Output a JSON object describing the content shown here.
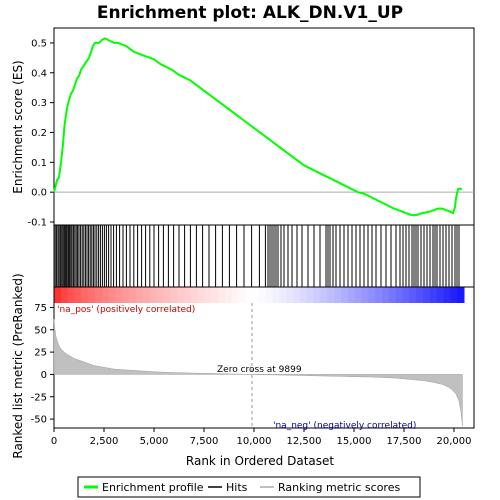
{
  "chart_data": {
    "type": "line",
    "title": "Enrichment plot: ALK_DN.V1_UP",
    "es_panel": {
      "ylabel": "Enrichment score (ES)",
      "ylim": [
        -0.11,
        0.55
      ],
      "yticks": [
        "0.5",
        "0.4",
        "0.3",
        "0.2",
        "0.1",
        "0.0",
        "-0.1"
      ],
      "ytick_values": [
        0.5,
        0.4,
        0.3,
        0.2,
        0.1,
        0.0,
        -0.1
      ],
      "series": {
        "name": "Enrichment profile",
        "color": "#00ff00",
        "x": [
          0,
          150,
          250,
          350,
          450,
          520,
          600,
          680,
          760,
          850,
          950,
          1050,
          1150,
          1250,
          1350,
          1450,
          1550,
          1650,
          1750,
          1850,
          1950,
          2050,
          2150,
          2250,
          2400,
          2550,
          2700,
          2850,
          3000,
          3200,
          3400,
          3600,
          3800,
          4000,
          4200,
          4400,
          4600,
          4800,
          5000,
          5300,
          5600,
          5900,
          6200,
          6500,
          6800,
          7100,
          7400,
          7700,
          8000,
          8300,
          8600,
          8900,
          9200,
          9500,
          9800,
          10100,
          10400,
          10700,
          11000,
          11300,
          11600,
          11900,
          12200,
          12500,
          12800,
          13100,
          13400,
          13700,
          14000,
          14300,
          14600,
          14900,
          15200,
          15500,
          15800,
          16100,
          16400,
          16700,
          17000,
          17200,
          17400,
          17600,
          17800,
          18000,
          18200,
          18400,
          18600,
          18800,
          19000,
          19200,
          19400,
          19600,
          19800,
          19950,
          20050,
          20100,
          20200,
          20300,
          20400
        ],
        "y": [
          0.0,
          0.04,
          0.05,
          0.1,
          0.16,
          0.22,
          0.26,
          0.29,
          0.31,
          0.33,
          0.34,
          0.36,
          0.38,
          0.39,
          0.41,
          0.42,
          0.43,
          0.44,
          0.45,
          0.47,
          0.49,
          0.5,
          0.5,
          0.5,
          0.51,
          0.515,
          0.51,
          0.505,
          0.5,
          0.5,
          0.495,
          0.49,
          0.48,
          0.47,
          0.465,
          0.46,
          0.455,
          0.45,
          0.445,
          0.43,
          0.42,
          0.41,
          0.395,
          0.385,
          0.375,
          0.36,
          0.345,
          0.33,
          0.315,
          0.3,
          0.285,
          0.27,
          0.255,
          0.24,
          0.225,
          0.21,
          0.195,
          0.18,
          0.165,
          0.15,
          0.135,
          0.12,
          0.105,
          0.09,
          0.08,
          0.07,
          0.06,
          0.05,
          0.04,
          0.03,
          0.02,
          0.01,
          0.0,
          -0.005,
          -0.015,
          -0.025,
          -0.035,
          -0.045,
          -0.055,
          -0.06,
          -0.065,
          -0.07,
          -0.075,
          -0.078,
          -0.075,
          -0.07,
          -0.068,
          -0.065,
          -0.06,
          -0.055,
          -0.055,
          -0.06,
          -0.065,
          -0.07,
          -0.05,
          -0.02,
          0.01,
          0.012,
          0.01
        ]
      }
    },
    "hits": {
      "name": "Hits",
      "positions": [
        60,
        130,
        200,
        260,
        330,
        390,
        450,
        510,
        560,
        610,
        660,
        720,
        780,
        840,
        900,
        970,
        1040,
        1110,
        1180,
        1250,
        1330,
        1410,
        1490,
        1570,
        1650,
        1730,
        1810,
        1890,
        1970,
        2050,
        2140,
        2230,
        2320,
        2420,
        2520,
        2620,
        2730,
        2850,
        2980,
        3120,
        3280,
        3450,
        3620,
        3800,
        3990,
        4180,
        4380,
        4580,
        4790,
        5000,
        5230,
        5470,
        5720,
        5980,
        6250,
        6530,
        6820,
        7120,
        7430,
        7750,
        8080,
        8420,
        8770,
        9130,
        9500,
        9880,
        10270,
        10570,
        10700,
        10800,
        10900,
        11000,
        11100,
        11200,
        11350,
        11500,
        11700,
        11900,
        12150,
        12400,
        12700,
        13000,
        13300,
        13600,
        13700,
        13800,
        13950,
        14100,
        14300,
        14500,
        14700,
        14900,
        15100,
        15300,
        15500,
        15700,
        15900,
        16100,
        16350,
        16600,
        16850,
        17100,
        17300,
        17450,
        17600,
        17750,
        17900,
        18000,
        18100,
        18200,
        18350,
        18500,
        18650,
        18800,
        18950,
        19050,
        19150,
        19300,
        19450,
        19600,
        19750,
        19900,
        20050,
        20150,
        20250
      ]
    },
    "ranked_panel": {
      "ylabel": "Ranked list metric (PreRanked)",
      "xlabel": "Rank in Ordered Dataset",
      "xlim": [
        0,
        21000
      ],
      "ylim": [
        -60,
        80
      ],
      "yticks": [
        "75",
        "50",
        "25",
        "0",
        "-25",
        "-50"
      ],
      "ytick_values": [
        75,
        50,
        25,
        0,
        -25,
        -50
      ],
      "xticks": [
        "0",
        "2,500",
        "5,000",
        "7,500",
        "10,000",
        "12,500",
        "15,000",
        "17,500",
        "20,000"
      ],
      "xtick_values": [
        0,
        2500,
        5000,
        7500,
        10000,
        12500,
        15000,
        17500,
        20000
      ],
      "metric_x": [
        0,
        50,
        100,
        200,
        300,
        500,
        700,
        1000,
        1500,
        2000,
        2500,
        3000,
        4000,
        5000,
        6000,
        7000,
        8000,
        9000,
        9899,
        11000,
        12000,
        13000,
        14000,
        15000,
        16000,
        17000,
        17500,
        18000,
        18500,
        19000,
        19400,
        19700,
        19900,
        20100,
        20250,
        20350,
        20420
      ],
      "metric_y": [
        62,
        50,
        42,
        35,
        30,
        25,
        22,
        18,
        14,
        10,
        8,
        6,
        4.5,
        3,
        2,
        1.5,
        1,
        0.5,
        0,
        -0.5,
        -1,
        -1.5,
        -2,
        -2.5,
        -3,
        -4,
        -5,
        -6,
        -7,
        -9,
        -11,
        -14,
        -17,
        -22,
        -30,
        -42,
        -58
      ],
      "zero_cross": 9899,
      "annotations": {
        "pos": "'na_pos' (positively correlated)",
        "neg": "'na_neg' (negatively correlated)",
        "zero": "Zero cross at 9899"
      }
    },
    "legend": {
      "items": [
        {
          "label": "Enrichment profile",
          "color": "#00ff00"
        },
        {
          "label": "Hits",
          "color": "#000000"
        },
        {
          "label": "Ranking metric scores",
          "color": "#c0c0c0"
        }
      ]
    },
    "colors": {
      "profile": "#00ff00",
      "hits": "#000000",
      "metric_fill": "#c0c0c0",
      "pos_label": "#cc0000",
      "neg_label": "#000099",
      "bar_pos": "#ff0000",
      "bar_neg": "#0000ff"
    }
  }
}
